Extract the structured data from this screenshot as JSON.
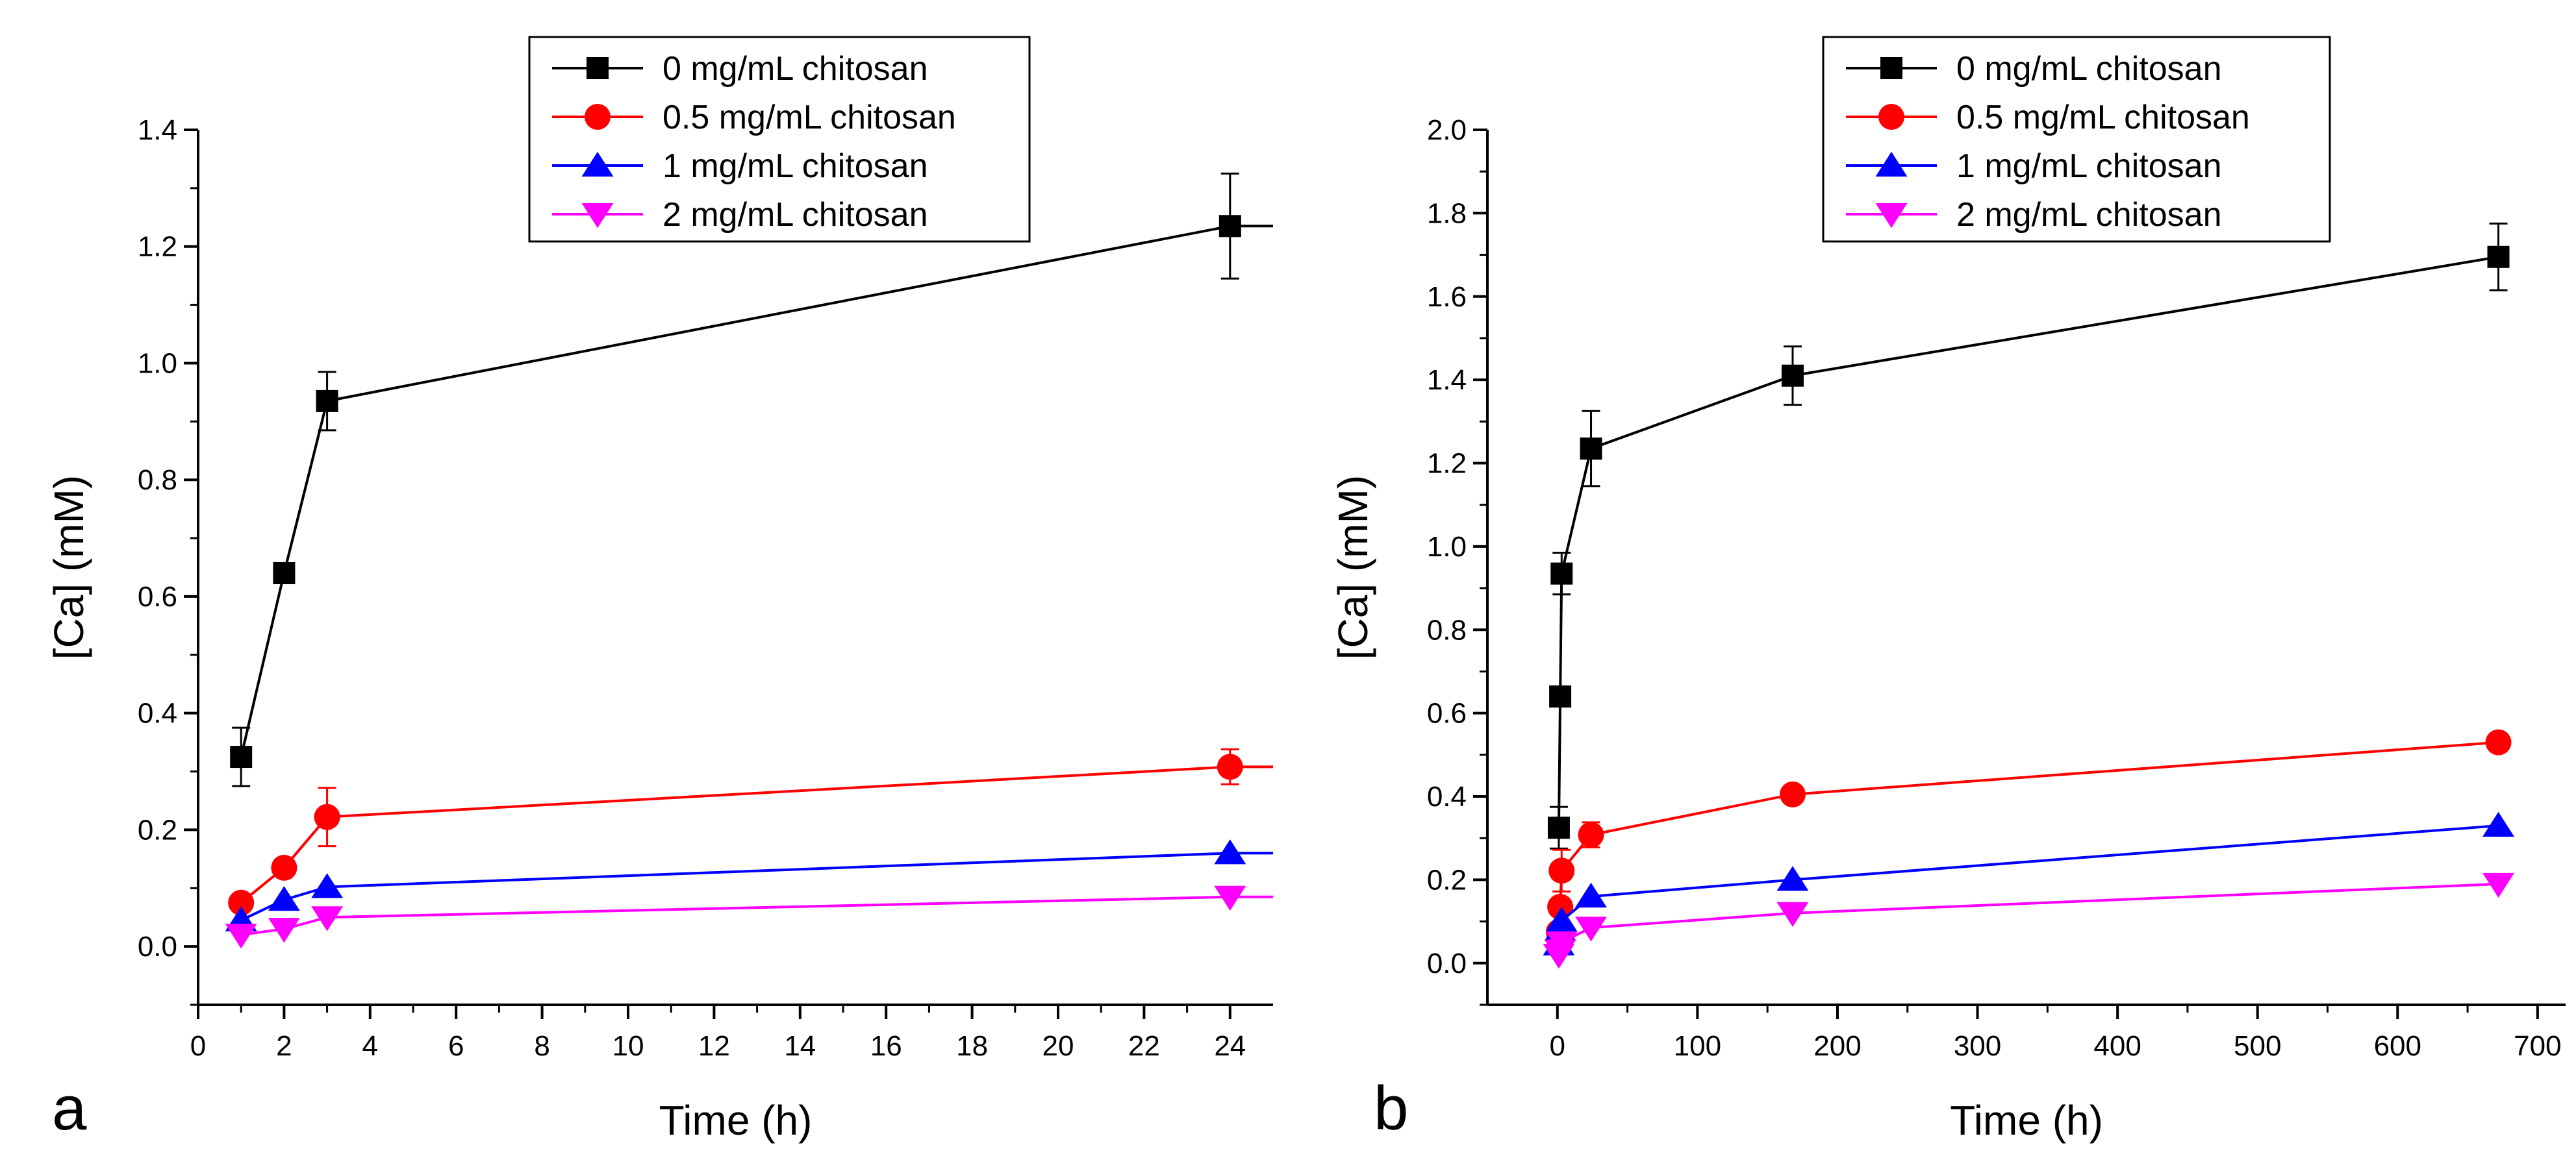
{
  "chart_data": [
    {
      "type": "line",
      "panel_label": "a",
      "xlabel": "Time (h)",
      "ylabel": "[Ca] (mM)",
      "xlim": [
        0,
        25
      ],
      "ylim": [
        -0.1,
        1.4
      ],
      "x_ticks": [
        0,
        2,
        4,
        6,
        8,
        10,
        12,
        14,
        16,
        18,
        20,
        22,
        24
      ],
      "y_ticks": [
        0.0,
        0.2,
        0.4,
        0.6,
        0.8,
        1.0,
        1.2,
        1.4
      ],
      "y_tick_decimals": 1,
      "legend_position": "top-center",
      "series": [
        {
          "name": "0 mg/mL chitosan",
          "color": "#000000",
          "marker": "square",
          "x": [
            1,
            2,
            3,
            24
          ],
          "y": [
            0.325,
            0.64,
            0.935,
            1.235
          ],
          "err": [
            0.05,
            0,
            0.05,
            0.09
          ]
        },
        {
          "name": "0.5 mg/mL chitosan",
          "color": "#ff0000",
          "marker": "circle",
          "x": [
            1,
            2,
            3,
            24
          ],
          "y": [
            0.075,
            0.135,
            0.222,
            0.308
          ],
          "err": [
            0,
            0,
            0.05,
            0.03
          ]
        },
        {
          "name": "1 mg/mL chitosan",
          "color": "#0000ff",
          "marker": "triangle-up",
          "x": [
            1,
            2,
            3,
            24
          ],
          "y": [
            0.045,
            0.08,
            0.102,
            0.16
          ],
          "err": [
            0,
            0,
            0,
            0
          ]
        },
        {
          "name": "2 mg/mL chitosan",
          "color": "#ff00ff",
          "marker": "triangle-down",
          "x": [
            1,
            2,
            3,
            24
          ],
          "y": [
            0.02,
            0.03,
            0.05,
            0.085
          ],
          "err": [
            0,
            0,
            0,
            0
          ]
        }
      ]
    },
    {
      "type": "line",
      "panel_label": "b",
      "xlabel": "Time (h)",
      "ylabel": "[Ca] (mM)",
      "xlim": [
        -50,
        720
      ],
      "ylim": [
        -0.1,
        2.0
      ],
      "x_ticks": [
        0,
        100,
        200,
        300,
        400,
        500,
        600,
        700
      ],
      "y_ticks": [
        0.0,
        0.2,
        0.4,
        0.6,
        0.8,
        1.0,
        1.2,
        1.4,
        1.6,
        1.8,
        2.0
      ],
      "y_tick_decimals": 1,
      "legend_position": "top-center",
      "series": [
        {
          "name": "0 mg/mL chitosan",
          "color": "#000000",
          "marker": "square",
          "x": [
            1,
            2,
            3,
            24,
            168,
            672
          ],
          "y": [
            0.325,
            0.64,
            0.935,
            1.235,
            1.41,
            1.695
          ],
          "err": [
            0.05,
            0,
            0.05,
            0.09,
            0.07,
            0.08
          ]
        },
        {
          "name": "0.5 mg/mL chitosan",
          "color": "#ff0000",
          "marker": "circle",
          "x": [
            1,
            2,
            3,
            24,
            168,
            672
          ],
          "y": [
            0.075,
            0.135,
            0.222,
            0.308,
            0.405,
            0.53
          ],
          "err": [
            0,
            0,
            0.05,
            0.03,
            0,
            0
          ]
        },
        {
          "name": "1 mg/mL chitosan",
          "color": "#0000ff",
          "marker": "triangle-up",
          "x": [
            1,
            2,
            3,
            24,
            168,
            672
          ],
          "y": [
            0.045,
            0.08,
            0.102,
            0.16,
            0.2,
            0.33
          ],
          "err": [
            0,
            0,
            0,
            0,
            0,
            0
          ]
        },
        {
          "name": "2 mg/mL chitosan",
          "color": "#ff00ff",
          "marker": "triangle-down",
          "x": [
            1,
            2,
            3,
            24,
            168,
            672
          ],
          "y": [
            0.02,
            0.03,
            0.05,
            0.085,
            0.12,
            0.19
          ],
          "err": [
            0,
            0,
            0,
            0,
            0,
            0
          ]
        }
      ]
    }
  ]
}
